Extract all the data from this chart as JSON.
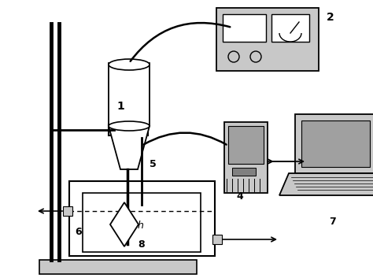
{
  "bg_color": "#ffffff",
  "lc": "#000000",
  "gray_light": "#c8c8c8",
  "gray_med": "#a0a0a0",
  "gray_dark": "#808080",
  "gray_box": "#d0d0d0"
}
